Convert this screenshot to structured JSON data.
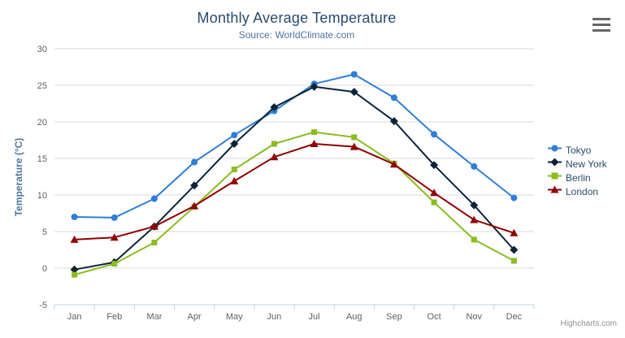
{
  "chart": {
    "credits_label": "Highcharts.com",
    "context_menu_icon": "hamburger-icon"
  },
  "chart_data": {
    "type": "line",
    "title": "Monthly Average Temperature",
    "subtitle": "Source: WorldClimate.com",
    "xlabel": "",
    "ylabel": "Temperature (°C)",
    "categories": [
      "Jan",
      "Feb",
      "Mar",
      "Apr",
      "May",
      "Jun",
      "Jul",
      "Aug",
      "Sep",
      "Oct",
      "Nov",
      "Dec"
    ],
    "ylim": [
      -5,
      30
    ],
    "yticks": [
      -5,
      0,
      5,
      10,
      15,
      20,
      25,
      30
    ],
    "grid": true,
    "legend_position": "right",
    "series": [
      {
        "name": "Tokyo",
        "color": "#2f7ed8",
        "marker": "circle",
        "values": [
          7.0,
          6.9,
          9.5,
          14.5,
          18.2,
          21.5,
          25.2,
          26.5,
          23.3,
          18.3,
          13.9,
          9.6
        ]
      },
      {
        "name": "New York",
        "color": "#0d233a",
        "marker": "diamond",
        "values": [
          -0.2,
          0.8,
          5.7,
          11.3,
          17.0,
          22.0,
          24.8,
          24.1,
          20.1,
          14.1,
          8.6,
          2.5
        ]
      },
      {
        "name": "Berlin",
        "color": "#8bbc21",
        "marker": "square",
        "values": [
          -0.9,
          0.6,
          3.5,
          8.4,
          13.5,
          17.0,
          18.6,
          17.9,
          14.3,
          9.0,
          3.9,
          1.0
        ]
      },
      {
        "name": "London",
        "color": "#910000",
        "marker": "triangle",
        "values": [
          3.9,
          4.2,
          5.7,
          8.5,
          11.9,
          15.2,
          17.0,
          16.6,
          14.2,
          10.3,
          6.6,
          4.8
        ]
      }
    ],
    "style": {
      "grid_line_color": "#d8d8d8",
      "axis_line_color": "#c0d0e0",
      "tick_label_color": "#606060",
      "title_color": "#274b6d",
      "subtitle_color": "#4d759e",
      "axis_title_color": "#4d759e",
      "legend_text_color": "#274b6d",
      "background_color": "#ffffff"
    }
  }
}
